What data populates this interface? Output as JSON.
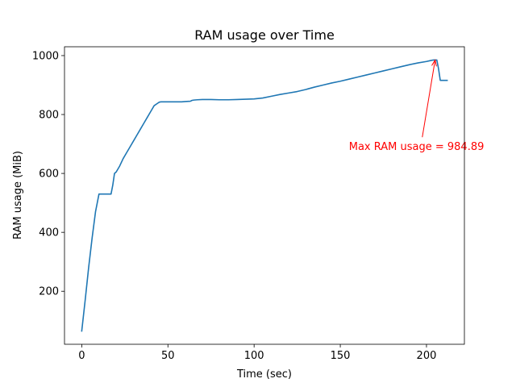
{
  "chart_data": {
    "type": "line",
    "title": "RAM usage over Time",
    "xlabel": "Time (sec)",
    "ylabel": "RAM usage (MiB)",
    "xlim": [
      -10,
      222
    ],
    "ylim": [
      20,
      1030
    ],
    "x_ticks": [
      0,
      50,
      100,
      150,
      200
    ],
    "y_ticks": [
      200,
      400,
      600,
      800,
      1000
    ],
    "grid": false,
    "series": [
      {
        "color": "#1f77b4",
        "x": [
          0,
          2,
          4,
          6,
          8,
          10,
          11,
          13,
          15,
          17,
          18,
          19,
          20,
          21,
          22,
          24,
          26,
          28,
          30,
          32,
          34,
          36,
          38,
          40,
          42,
          44,
          45,
          46,
          47,
          48,
          50,
          52,
          55,
          58,
          60,
          63,
          64,
          65,
          67,
          70,
          75,
          80,
          85,
          90,
          95,
          100,
          105,
          110,
          115,
          120,
          125,
          130,
          135,
          140,
          145,
          150,
          155,
          160,
          165,
          170,
          175,
          180,
          185,
          190,
          195,
          200,
          203,
          204,
          205,
          206,
          207,
          208,
          209,
          210,
          212
        ],
        "y": [
          65,
          170,
          280,
          380,
          470,
          530,
          530,
          530,
          530,
          530,
          560,
          600,
          605,
          615,
          625,
          650,
          670,
          690,
          710,
          730,
          750,
          770,
          790,
          810,
          830,
          838,
          842,
          843,
          843,
          843,
          843,
          843,
          843,
          843,
          844,
          845,
          848,
          849,
          850,
          851,
          851,
          850,
          850,
          851,
          852,
          853,
          856,
          862,
          868,
          873,
          878,
          885,
          893,
          900,
          907,
          913,
          920,
          927,
          934,
          941,
          948,
          955,
          962,
          969,
          975,
          980,
          984,
          985,
          985,
          985,
          955,
          916,
          916,
          916,
          916
        ]
      }
    ],
    "annotation": {
      "text": "Max RAM usage = 984.89",
      "color": "#ff0000",
      "point": [
        205,
        984.89
      ],
      "text_pos": [
        155,
        690
      ]
    }
  }
}
